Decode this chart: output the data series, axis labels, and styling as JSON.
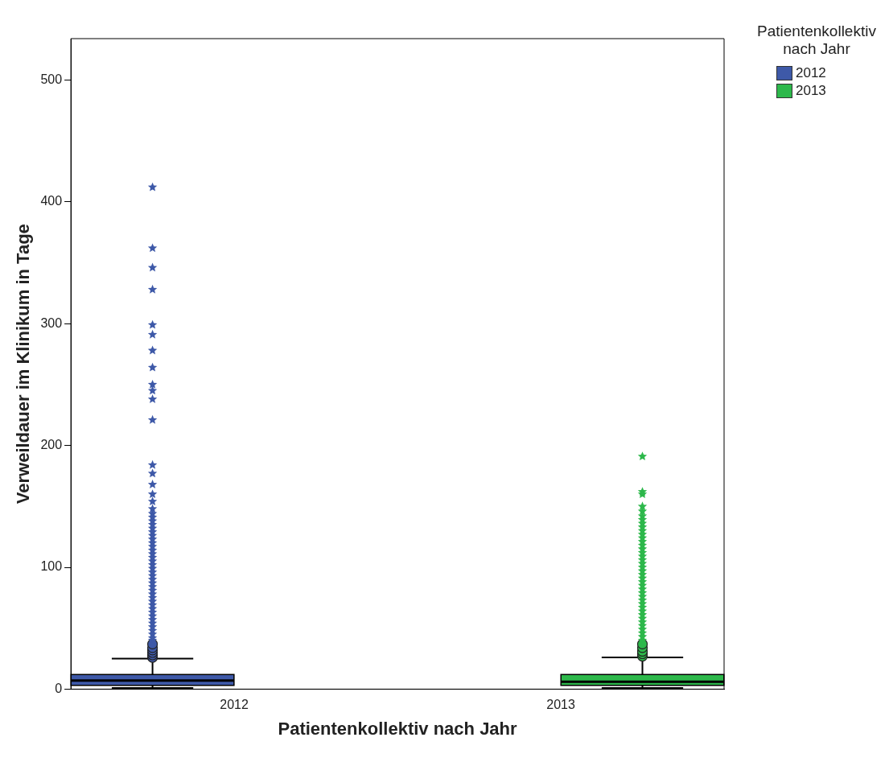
{
  "chart_data": {
    "type": "box",
    "xlabel": "Patientenkollektiv nach Jahr",
    "ylabel": "Verweildauer im Klinikum in Tage",
    "legend_title": "Patientenkollektiv nach Jahr",
    "legend": "top right",
    "grid": false,
    "categories": [
      "2012",
      "2013"
    ],
    "ylim": [
      0,
      534
    ],
    "yticks": [
      0,
      100,
      200,
      300,
      400,
      500
    ],
    "series": [
      {
        "name": "2012",
        "color": "#3e59a8",
        "boxes": [
          {
            "low": 1,
            "q1": 3,
            "median": 7,
            "q3": 12,
            "high": 25,
            "outliers": [
              26,
              28,
              30,
              32,
              34,
              37,
              40,
              42,
              45,
              48,
              51,
              54,
              57,
              60,
              63,
              66,
              69,
              72,
              75,
              78,
              81,
              84,
              87,
              90,
              93,
              96,
              99,
              102,
              105,
              108,
              111,
              114,
              117,
              120,
              123,
              126,
              129,
              132,
              135,
              138,
              141,
              144,
              148,
              154,
              160,
              168,
              177,
              184,
              221,
              238,
              245,
              250,
              264,
              278,
              291,
              299,
              328,
              346,
              362,
              412
            ]
          },
          null
        ]
      },
      {
        "name": "2013",
        "color": "#2db84b",
        "boxes": [
          null,
          {
            "low": 1,
            "q1": 3,
            "median": 6,
            "q3": 12,
            "high": 26,
            "outliers": [
              27,
              29,
              31,
              34,
              37,
              40,
              43,
              46,
              49,
              52,
              55,
              58,
              61,
              64,
              67,
              70,
              73,
              76,
              79,
              82,
              85,
              88,
              91,
              94,
              97,
              100,
              103,
              106,
              109,
              112,
              115,
              118,
              121,
              124,
              127,
              130,
              133,
              136,
              139,
              142,
              146,
              150,
              160,
              162,
              191
            ]
          }
        ]
      }
    ]
  }
}
